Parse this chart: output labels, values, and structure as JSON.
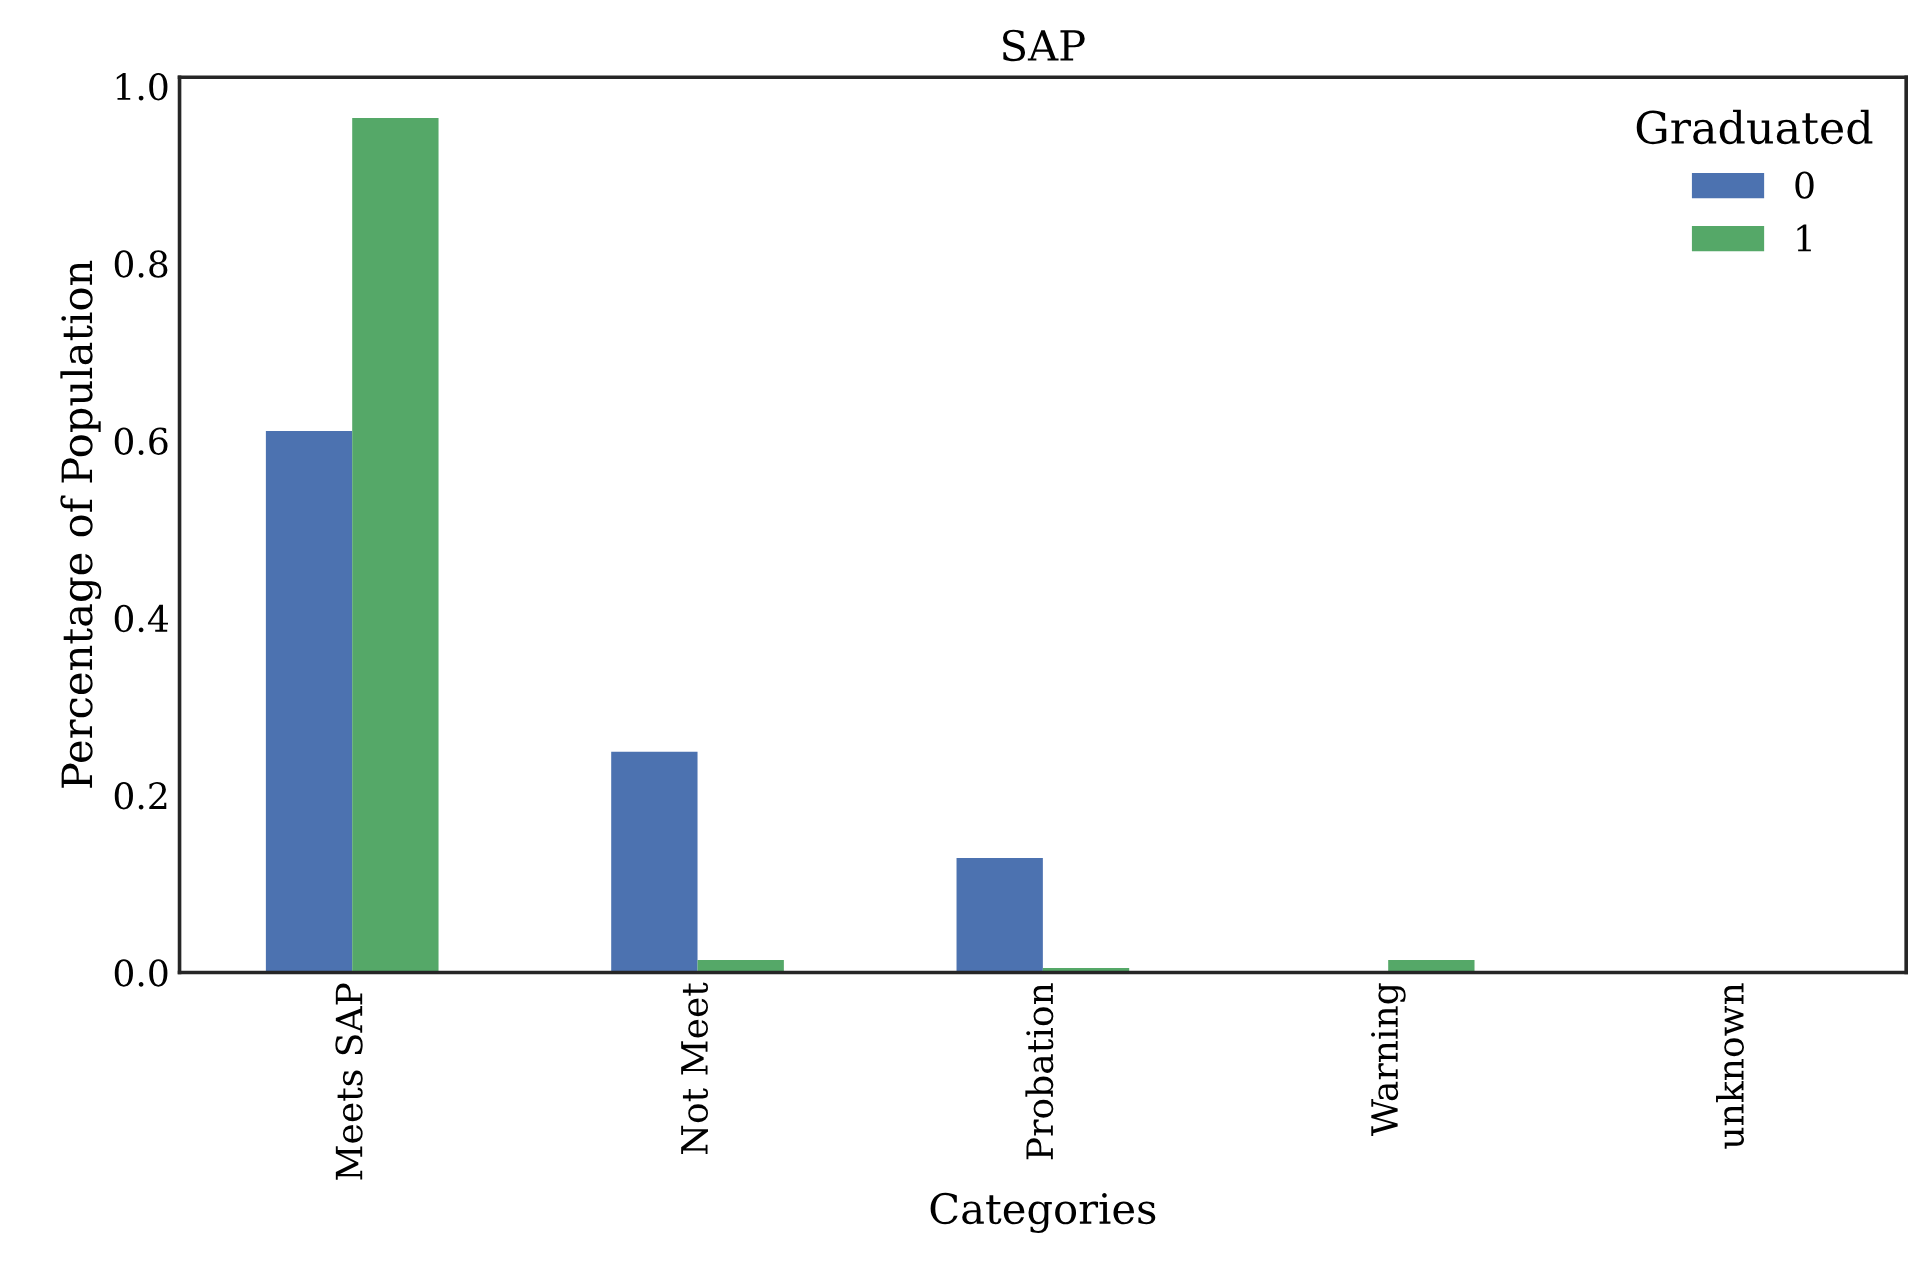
{
  "chart_data": {
    "type": "bar",
    "title": "SAP",
    "xlabel": "Categories",
    "ylabel": "Percentage of Population",
    "categories": [
      "Meets SAP",
      "Not Meet",
      "Probation",
      "Warning",
      "unknown"
    ],
    "series": [
      {
        "name": "0",
        "color": "#4c72b0",
        "values": [
          0.611,
          0.249,
          0.129,
          0,
          0
        ]
      },
      {
        "name": "1",
        "color": "#55a868",
        "values": [
          0.964,
          0.014,
          0.005,
          0.014,
          0
        ]
      }
    ],
    "legend_title": "Graduated",
    "legend": "top right",
    "ylim": [
      0,
      1.01
    ],
    "yticks": [
      {
        "value": 0,
        "label": "0.0"
      },
      0.2,
      0.4,
      0.6,
      0.8,
      {
        "value": 1,
        "label": "1.0"
      }
    ],
    "grid": false
  }
}
